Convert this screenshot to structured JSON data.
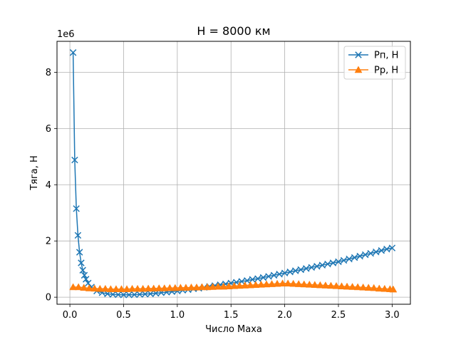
{
  "chart_data": {
    "type": "line",
    "title": "H = 8000 км",
    "xlabel": "Число Маха",
    "ylabel": "Тяга, Н",
    "y_offset_text": "1e6",
    "xlim": [
      -0.12,
      3.17
    ],
    "ylim": [
      -0.25,
      9.1
    ],
    "y_unit_multiplier": 1000000,
    "x_ticks": [
      0.0,
      0.5,
      1.0,
      1.5,
      2.0,
      2.5,
      3.0
    ],
    "x_tick_labels": [
      "0.0",
      "0.5",
      "1.0",
      "1.5",
      "2.0",
      "2.5",
      "3.0"
    ],
    "y_ticks": [
      0,
      2,
      4,
      6,
      8
    ],
    "y_tick_labels": [
      "0",
      "2",
      "4",
      "6",
      "8"
    ],
    "grid": true,
    "legend_position": "top-right",
    "series": [
      {
        "name": "Рп, Н",
        "color": "#1f77b4",
        "marker": "x",
        "x": [
          0.03,
          0.045,
          0.06,
          0.075,
          0.09,
          0.105,
          0.12,
          0.135,
          0.15,
          0.17,
          0.2,
          0.25,
          0.3,
          0.35,
          0.4,
          0.45,
          0.5,
          0.55,
          0.6,
          0.65,
          0.7,
          0.75,
          0.8,
          0.85,
          0.9,
          0.95,
          1.0,
          1.05,
          1.1,
          1.15,
          1.2,
          1.25,
          1.3,
          1.35,
          1.4,
          1.45,
          1.5,
          1.55,
          1.6,
          1.65,
          1.7,
          1.75,
          1.8,
          1.85,
          1.9,
          1.95,
          2.0,
          2.05,
          2.1,
          2.15,
          2.2,
          2.25,
          2.3,
          2.35,
          2.4,
          2.45,
          2.5,
          2.55,
          2.6,
          2.65,
          2.7,
          2.75,
          2.8,
          2.85,
          2.9,
          2.95,
          3.0
        ],
        "values": [
          8.7,
          4.88,
          3.15,
          2.2,
          1.6,
          1.22,
          0.96,
          0.78,
          0.64,
          0.5,
          0.36,
          0.22,
          0.16,
          0.12,
          0.1,
          0.09,
          0.085,
          0.085,
          0.09,
          0.1,
          0.11,
          0.12,
          0.14,
          0.16,
          0.18,
          0.2,
          0.22,
          0.25,
          0.27,
          0.3,
          0.32,
          0.35,
          0.38,
          0.41,
          0.44,
          0.47,
          0.5,
          0.53,
          0.56,
          0.59,
          0.63,
          0.66,
          0.7,
          0.74,
          0.78,
          0.82,
          0.86,
          0.9,
          0.94,
          0.98,
          1.02,
          1.06,
          1.1,
          1.14,
          1.18,
          1.22,
          1.26,
          1.31,
          1.36,
          1.41,
          1.46,
          1.51,
          1.56,
          1.61,
          1.66,
          1.71,
          1.75
        ]
      },
      {
        "name": "Рр, Н",
        "color": "#ff7f0e",
        "marker": "triangle",
        "x": [
          0.03,
          0.08,
          0.13,
          0.18,
          0.23,
          0.28,
          0.33,
          0.38,
          0.43,
          0.48,
          0.53,
          0.58,
          0.63,
          0.68,
          0.73,
          0.78,
          0.83,
          0.88,
          0.93,
          0.98,
          1.03,
          1.08,
          1.13,
          1.18,
          1.23,
          1.28,
          1.33,
          1.38,
          1.43,
          1.48,
          1.53,
          1.58,
          1.63,
          1.68,
          1.73,
          1.78,
          1.83,
          1.88,
          1.93,
          1.98,
          2.03,
          2.08,
          2.13,
          2.18,
          2.23,
          2.28,
          2.33,
          2.38,
          2.43,
          2.48,
          2.53,
          2.58,
          2.63,
          2.68,
          2.73,
          2.78,
          2.83,
          2.88,
          2.93,
          2.98,
          3.01
        ],
        "values": [
          0.36,
          0.36,
          0.34,
          0.32,
          0.31,
          0.3,
          0.3,
          0.29,
          0.29,
          0.29,
          0.29,
          0.3,
          0.3,
          0.3,
          0.31,
          0.31,
          0.32,
          0.32,
          0.33,
          0.33,
          0.34,
          0.34,
          0.35,
          0.35,
          0.36,
          0.36,
          0.37,
          0.38,
          0.38,
          0.39,
          0.4,
          0.41,
          0.42,
          0.43,
          0.44,
          0.45,
          0.46,
          0.47,
          0.48,
          0.49,
          0.49,
          0.48,
          0.47,
          0.46,
          0.45,
          0.44,
          0.43,
          0.42,
          0.41,
          0.4,
          0.39,
          0.38,
          0.37,
          0.36,
          0.35,
          0.34,
          0.33,
          0.31,
          0.3,
          0.29,
          0.28
        ]
      }
    ]
  }
}
